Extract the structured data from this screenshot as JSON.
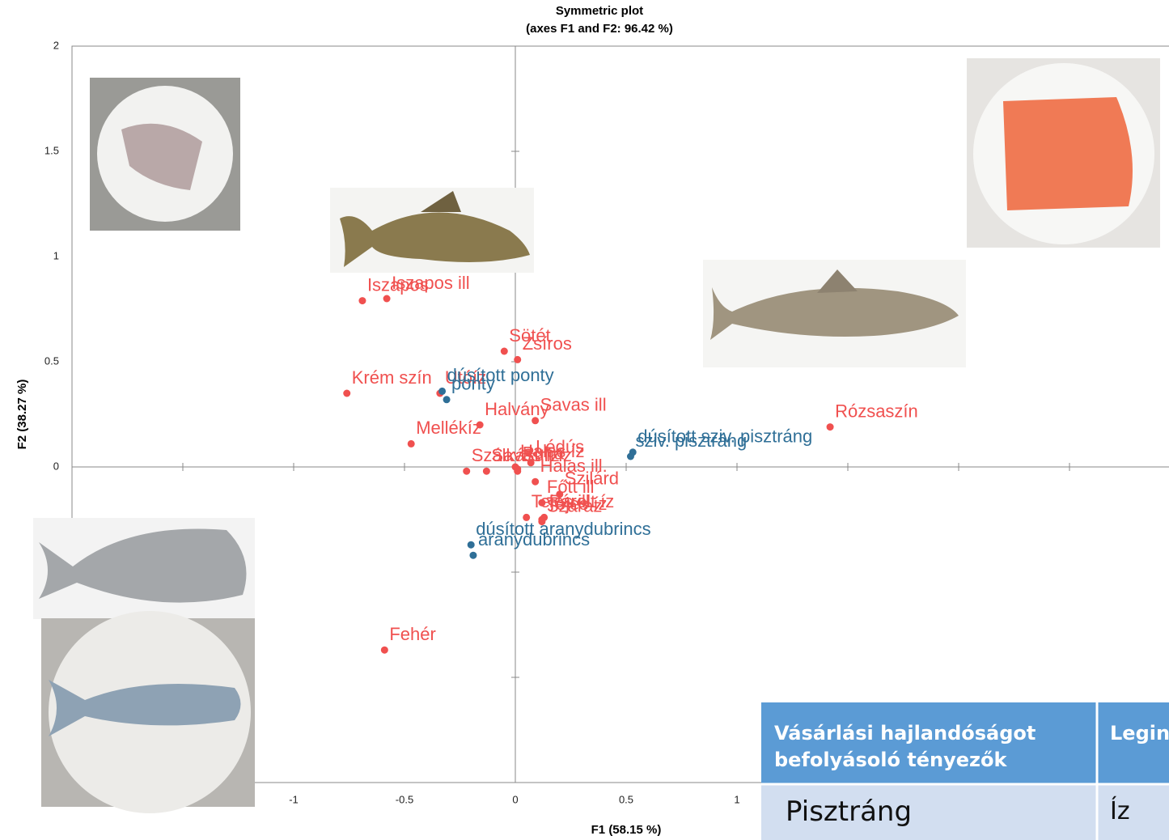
{
  "chart_data": {
    "type": "scatter",
    "title": "Symmetric plot",
    "subtitle": "(axes F1 and F2: 96.42 %)",
    "xlabel": "F1 (58.15 %)",
    "ylabel": "F2 (38.27 %)",
    "xlim": [
      -2,
      3
    ],
    "ylim": [
      -1.5,
      2
    ],
    "xticks": [
      -2,
      -1.5,
      -1,
      -0.5,
      0,
      0.5,
      1,
      1.5,
      2,
      2.5,
      3
    ],
    "yticks": [
      -1.5,
      -1,
      -0.5,
      0,
      0.5,
      1,
      1.5,
      2
    ],
    "series": [
      {
        "color": "#f0504f",
        "labels": [
          "Iszapos",
          "Iszapos ill",
          "Sötét",
          "Zsíros",
          "Krém szín",
          "Utóíz",
          "Halvány",
          "Mellékíz",
          "Savas ill",
          "Lédús",
          "Halas íz",
          "Sült íz",
          "Halas ill.",
          "Szálkás",
          "Savas íz",
          "Puha",
          "Főtt ill",
          "Szilárd",
          "Tejes ill.",
          "Tejes íz",
          "Párolt íz",
          "Száraz",
          "Rózsaszín",
          "Fehér"
        ],
        "x": [
          -0.69,
          -0.58,
          -0.05,
          0.01,
          -0.76,
          -0.34,
          -0.16,
          -0.47,
          0.09,
          0.07,
          0,
          0.01,
          0.09,
          -0.22,
          -0.13,
          0.01,
          0.12,
          0.2,
          0.05,
          0.12,
          0.13,
          0.12,
          1.42,
          -0.59
        ],
        "y": [
          0.79,
          0.8,
          0.55,
          0.51,
          0.35,
          0.35,
          0.2,
          0.11,
          0.22,
          0.02,
          0,
          -0.02,
          -0.07,
          -0.02,
          -0.02,
          -0.01,
          -0.17,
          -0.13,
          -0.24,
          -0.25,
          -0.24,
          -0.26,
          0.19,
          -0.87
        ]
      },
      {
        "color": "#2f6f97",
        "labels": [
          "dúsított ponty",
          "ponty",
          "dúsított sziv. pisztráng",
          "sziv. pisztráng",
          "dúsított aranydubrincs",
          "aranydubrincs"
        ],
        "x": [
          -0.33,
          -0.31,
          0.53,
          0.52,
          -0.2,
          -0.19
        ],
        "y": [
          0.36,
          0.32,
          0.07,
          0.05,
          -0.37,
          -0.42
        ]
      }
    ]
  },
  "table": {
    "header": [
      "Vásárlási hajlandóságot befolyásoló tényezők",
      "Legin"
    ],
    "rows": [
      [
        "Pisztráng",
        "Íz"
      ]
    ]
  }
}
